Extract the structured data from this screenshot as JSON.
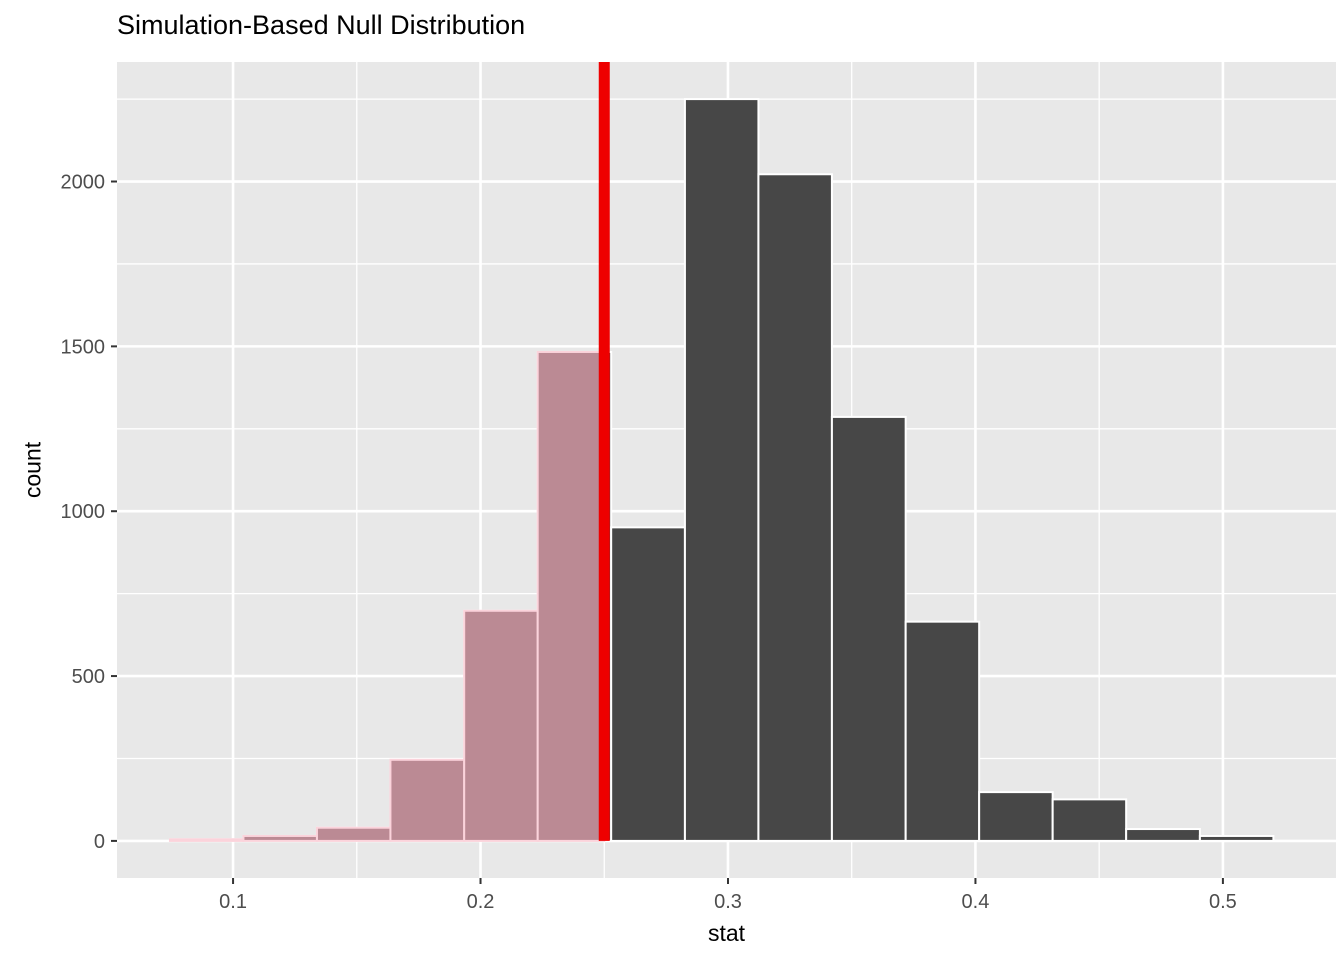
{
  "chart_data": {
    "type": "bar",
    "subtype": "histogram",
    "title": "Simulation-Based Null Distribution",
    "xlabel": "stat",
    "ylabel": "count",
    "legend": "none",
    "grid": "on",
    "x_breaks": [
      0.1,
      0.2,
      0.3,
      0.4,
      0.5
    ],
    "x_tick_labels": [
      "0.1",
      "0.2",
      "0.3",
      "0.4",
      "0.5"
    ],
    "x_minor_breaks": [
      0.15,
      0.25,
      0.35,
      0.45
    ],
    "y_breaks": [
      0,
      500,
      1000,
      1500,
      2000
    ],
    "y_tick_labels": [
      "0",
      "500",
      "1000",
      "1500",
      "2000"
    ],
    "y_minor_breaks": [
      250,
      750,
      1250,
      1750,
      2250
    ],
    "xlim": [
      0.0531,
      0.5457
    ],
    "ylim": [
      -112.5,
      2362.5
    ],
    "binwidth": 0.0297,
    "bins": [
      {
        "start": 0.0745,
        "end": 0.1042,
        "count": 5
      },
      {
        "start": 0.1042,
        "end": 0.1339,
        "count": 15
      },
      {
        "start": 0.1339,
        "end": 0.1636,
        "count": 40
      },
      {
        "start": 0.1636,
        "end": 0.1934,
        "count": 246
      },
      {
        "start": 0.1934,
        "end": 0.2231,
        "count": 698
      },
      {
        "start": 0.2231,
        "end": 0.2528,
        "count": 1483
      },
      {
        "start": 0.2528,
        "end": 0.2826,
        "count": 951
      },
      {
        "start": 0.2826,
        "end": 0.3123,
        "count": 2250
      },
      {
        "start": 0.3123,
        "end": 0.342,
        "count": 2022
      },
      {
        "start": 0.342,
        "end": 0.3718,
        "count": 1286
      },
      {
        "start": 0.3718,
        "end": 0.4015,
        "count": 665
      },
      {
        "start": 0.4015,
        "end": 0.4312,
        "count": 148
      },
      {
        "start": 0.4312,
        "end": 0.4609,
        "count": 126
      },
      {
        "start": 0.4609,
        "end": 0.4907,
        "count": 36
      },
      {
        "start": 0.4907,
        "end": 0.5204,
        "count": 15
      }
    ],
    "p_value_shading": {
      "obs_stat": 0.25,
      "direction": "less"
    },
    "colors": {
      "bar_fill": "#474747",
      "bar_stroke": "#FFFFFF",
      "shade_fill": "#BB8A94",
      "shade_stroke": "#FBD3DB",
      "obs_line": "#EE0000",
      "panel_bg": "#E8E8E8",
      "grid": "#FFFFFF",
      "tick_label": "#4D4D4D",
      "axis_title": "#000000",
      "title": "#000000",
      "tick_mark": "#333333"
    }
  }
}
